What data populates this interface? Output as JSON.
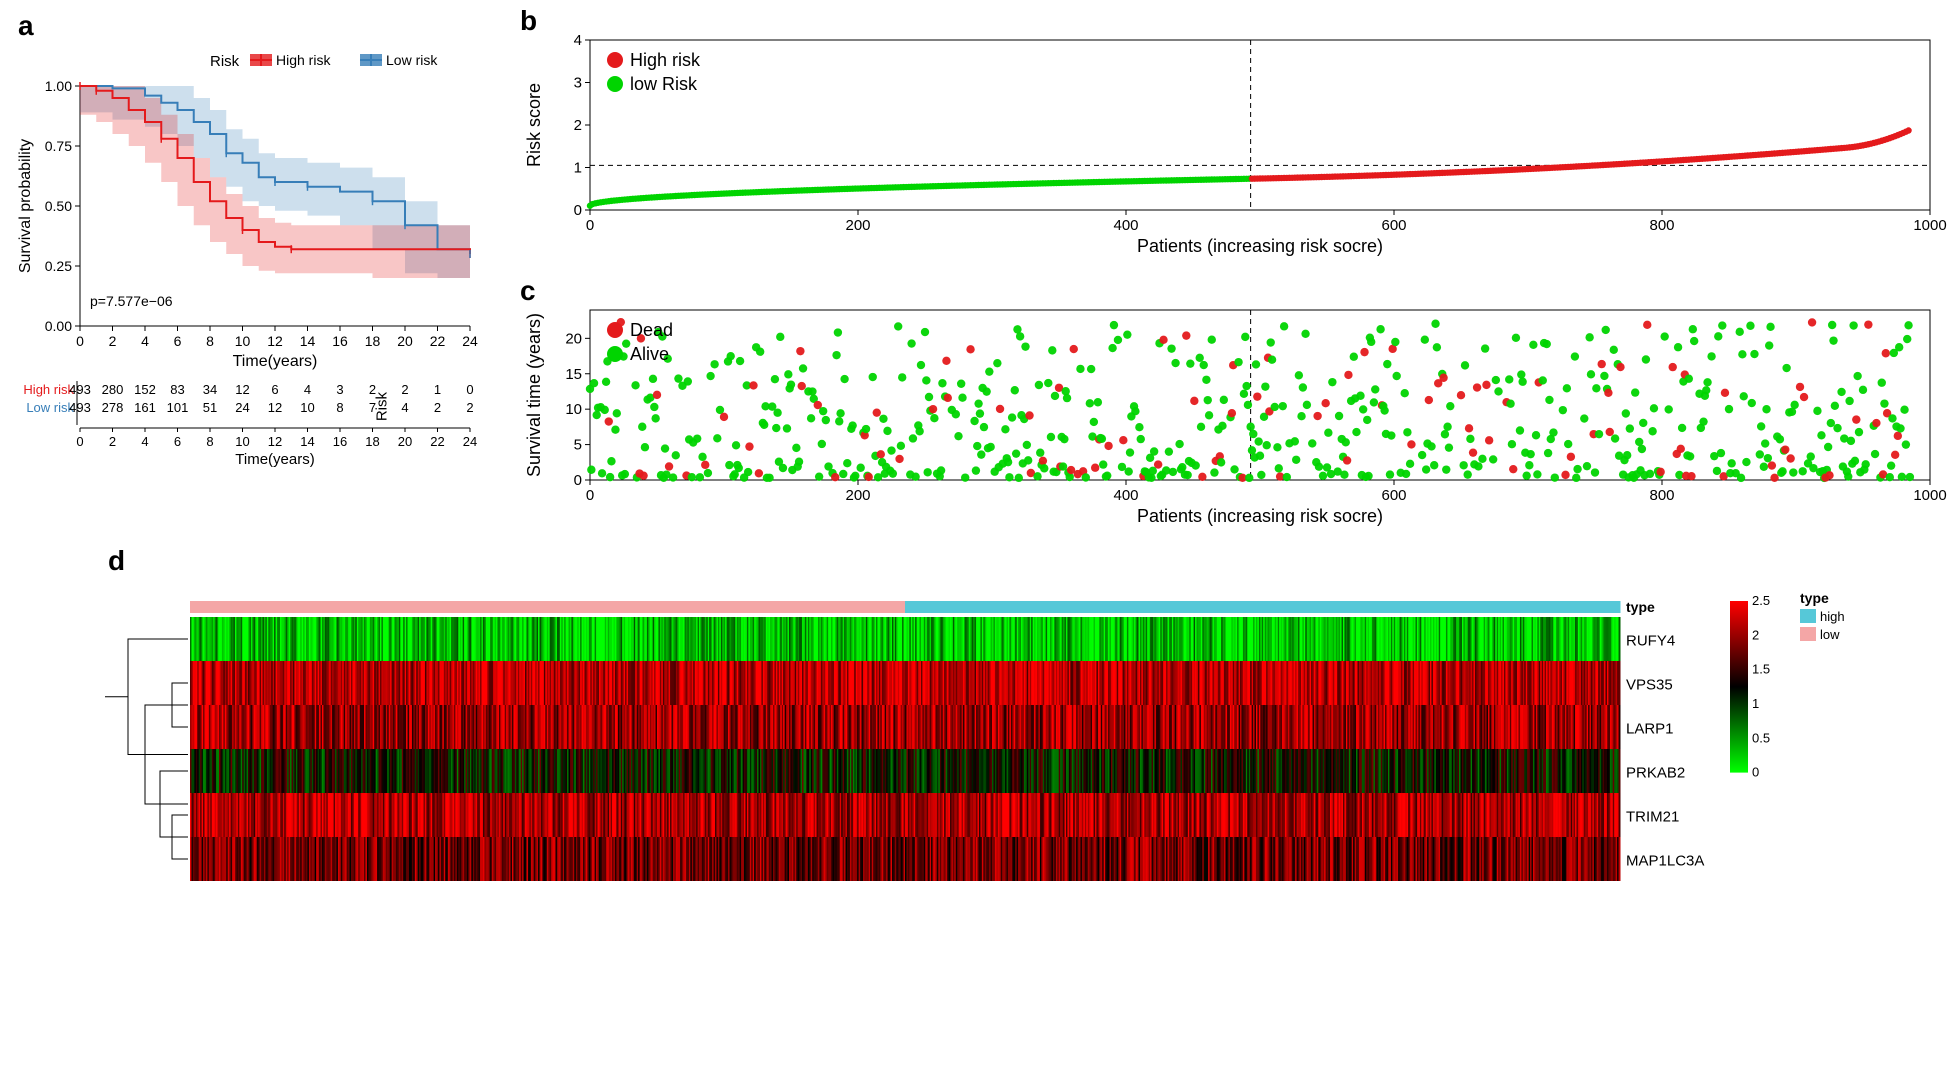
{
  "panel_labels": {
    "a": "a",
    "b": "b",
    "c": "c",
    "d": "d"
  },
  "colors": {
    "high_risk": "#e41a1c",
    "low_risk": "#377eb8",
    "high_risk_fill": "rgba(228,26,28,0.25)",
    "low_risk_fill": "rgba(55,126,184,0.25)",
    "green": "#00d400",
    "red": "#e41a1c",
    "black": "#000000",
    "heatmap_high_bar": "#56c8d8",
    "heatmap_low_bar": "#f4a6a6"
  },
  "panel_a": {
    "type": "kaplan_meier",
    "legend_title": "Risk",
    "legend_items": [
      {
        "label": "High risk",
        "color": "#e41a1c"
      },
      {
        "label": "Low risk",
        "color": "#377eb8"
      }
    ],
    "xlabel": "Time(years)",
    "ylabel": "Survival probability",
    "xlim": [
      0,
      24
    ],
    "xtick_step": 2,
    "ylim": [
      0,
      1
    ],
    "yticks": [
      0,
      0.25,
      0.5,
      0.75,
      1.0
    ],
    "pvalue": "p=7.577e−06",
    "km_high": [
      {
        "t": 0,
        "s": 1.0
      },
      {
        "t": 1,
        "s": 0.98
      },
      {
        "t": 2,
        "s": 0.95
      },
      {
        "t": 3,
        "s": 0.9
      },
      {
        "t": 4,
        "s": 0.85
      },
      {
        "t": 5,
        "s": 0.78
      },
      {
        "t": 6,
        "s": 0.7
      },
      {
        "t": 7,
        "s": 0.6
      },
      {
        "t": 8,
        "s": 0.52
      },
      {
        "t": 9,
        "s": 0.45
      },
      {
        "t": 10,
        "s": 0.4
      },
      {
        "t": 11,
        "s": 0.35
      },
      {
        "t": 12,
        "s": 0.33
      },
      {
        "t": 13,
        "s": 0.32
      },
      {
        "t": 14,
        "s": 0.32
      },
      {
        "t": 18,
        "s": 0.32
      },
      {
        "t": 24,
        "s": 0.3
      }
    ],
    "km_low": [
      {
        "t": 0,
        "s": 1.0
      },
      {
        "t": 2,
        "s": 0.99
      },
      {
        "t": 4,
        "s": 0.96
      },
      {
        "t": 5,
        "s": 0.93
      },
      {
        "t": 6,
        "s": 0.9
      },
      {
        "t": 7,
        "s": 0.85
      },
      {
        "t": 8,
        "s": 0.8
      },
      {
        "t": 9,
        "s": 0.72
      },
      {
        "t": 10,
        "s": 0.68
      },
      {
        "t": 11,
        "s": 0.62
      },
      {
        "t": 12,
        "s": 0.6
      },
      {
        "t": 14,
        "s": 0.58
      },
      {
        "t": 16,
        "s": 0.56
      },
      {
        "t": 18,
        "s": 0.52
      },
      {
        "t": 20,
        "s": 0.42
      },
      {
        "t": 22,
        "s": 0.32
      },
      {
        "t": 24,
        "s": 0.3
      }
    ],
    "ci_band": 0.1,
    "risk_table": {
      "title": "Risk",
      "xlabel": "Time(years)",
      "rows": [
        {
          "label": "High risk",
          "color": "#e41a1c",
          "n": [
            493,
            280,
            152,
            83,
            34,
            12,
            6,
            4,
            3,
            2,
            2,
            1,
            0
          ]
        },
        {
          "label": "Low risk",
          "color": "#377eb8",
          "n": [
            493,
            278,
            161,
            101,
            51,
            24,
            12,
            10,
            8,
            7,
            4,
            2,
            2
          ]
        }
      ],
      "times": [
        0,
        2,
        4,
        6,
        8,
        10,
        12,
        14,
        16,
        18,
        20,
        22,
        24
      ]
    }
  },
  "panel_b": {
    "type": "scatter_sorted",
    "xlabel": "Patients (increasing risk socre)",
    "ylabel": "Risk score",
    "xlim": [
      0,
      1000
    ],
    "xtick_step": 200,
    "ylim": [
      0,
      4
    ],
    "ytick_step": 1,
    "cutoff_x": 493,
    "cutoff_y": 1.05,
    "legend": [
      {
        "label": "High risk",
        "color": "#e41a1c"
      },
      {
        "label": "low Risk",
        "color": "#00d400"
      }
    ]
  },
  "panel_c": {
    "type": "scatter",
    "xlabel": "Patients (increasing risk socre)",
    "ylabel": "Survival time (years)",
    "xlim": [
      0,
      1000
    ],
    "xtick_step": 200,
    "ylim": [
      0,
      24
    ],
    "yticks": [
      0,
      5,
      10,
      15,
      20
    ],
    "cutoff_x": 493,
    "legend": [
      {
        "label": "Dead",
        "color": "#e41a1c"
      },
      {
        "label": "Alive",
        "color": "#00d400"
      }
    ]
  },
  "panel_d": {
    "type": "heatmap",
    "genes": [
      "RUFY4",
      "VPS35",
      "LARP1",
      "PRKAB2",
      "TRIM21",
      "MAP1LC3A"
    ],
    "n_patients": 986,
    "split_at": 493,
    "type_bar_label": "type",
    "type_legend": {
      "title": "type",
      "items": [
        {
          "label": "high",
          "color": "#56c8d8"
        },
        {
          "label": "low",
          "color": "#f4a6a6"
        }
      ]
    },
    "color_scale": {
      "min": 0,
      "max": 2.5,
      "ticks": [
        0,
        0.5,
        1,
        1.5,
        2,
        2.5
      ],
      "low": "#00ff00",
      "mid": "#000000",
      "high": "#ff0000"
    },
    "row_base_hue": {
      "RUFY4": 0.25,
      "VPS35": 2.2,
      "LARP1": 2.0,
      "PRKAB2": 1.2,
      "TRIM21": 2.1,
      "MAP1LC3A": 1.8
    }
  }
}
